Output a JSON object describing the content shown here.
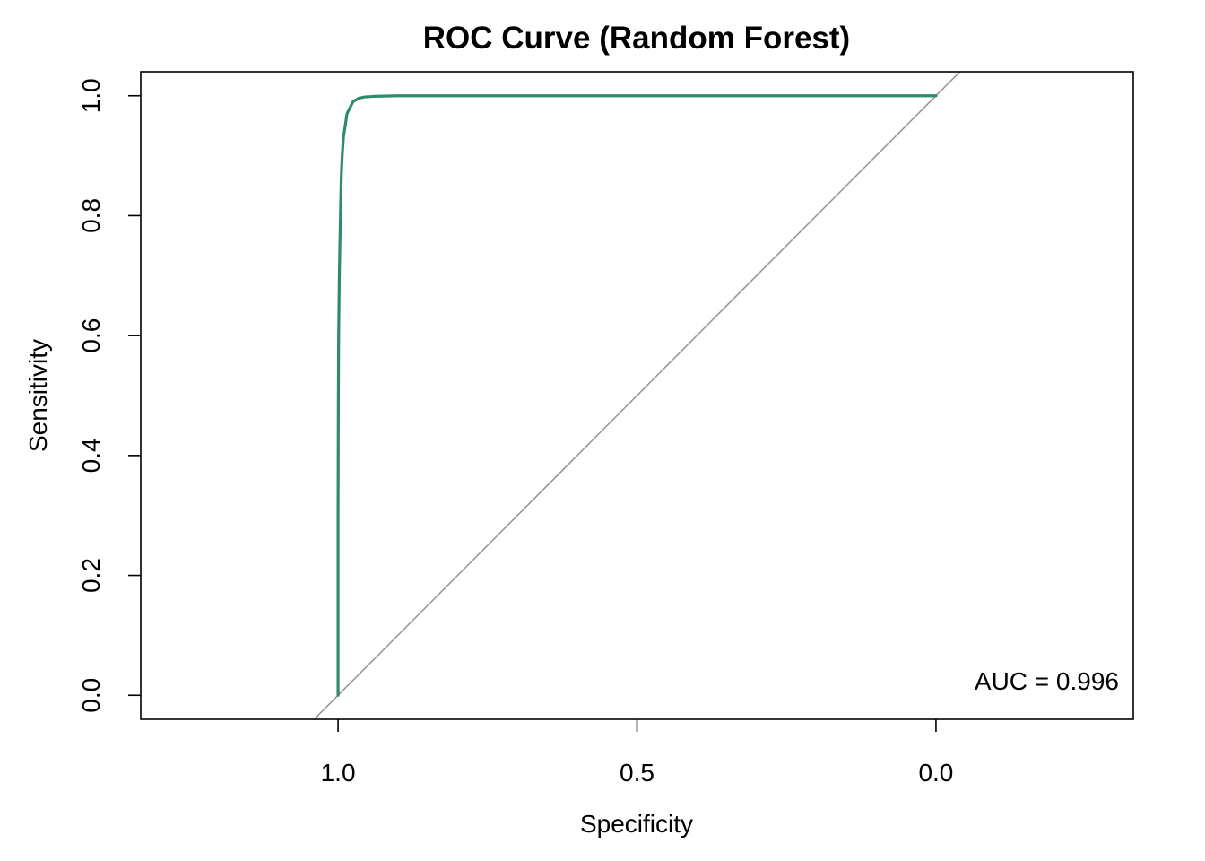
{
  "chart_data": {
    "type": "line",
    "title": "ROC Curve (Random Forest)",
    "xlabel": "Specificity",
    "ylabel": "Sensitivity",
    "x_reversed": true,
    "xlim": [
      1.33,
      -0.33
    ],
    "ylim": [
      -0.04,
      1.04
    ],
    "x_ticks": [
      1.0,
      0.5,
      0.0
    ],
    "x_tick_labels": [
      "1.0",
      "0.5",
      "0.0"
    ],
    "y_ticks": [
      0.0,
      0.2,
      0.4,
      0.6,
      0.8,
      1.0
    ],
    "y_tick_labels": [
      "0.0",
      "0.2",
      "0.4",
      "0.6",
      "0.8",
      "1.0"
    ],
    "grid": false,
    "reference_line": {
      "x": [
        1.0,
        0.0
      ],
      "y": [
        0.0,
        1.0
      ],
      "color": "#999999"
    },
    "series": [
      {
        "color": "#2E8B6E",
        "x": [
          1.0,
          1.0,
          0.9995,
          0.999,
          0.998,
          0.997,
          0.996,
          0.995,
          0.994,
          0.993,
          0.991,
          0.988,
          0.985,
          0.98,
          0.975,
          0.965,
          0.955,
          0.94,
          0.9,
          0.8,
          0.6,
          0.4,
          0.2,
          0.0
        ],
        "y": [
          0.0,
          0.3,
          0.5,
          0.6,
          0.69,
          0.75,
          0.8,
          0.85,
          0.88,
          0.9,
          0.93,
          0.95,
          0.97,
          0.98,
          0.99,
          0.996,
          0.998,
          0.999,
          1.0,
          1.0,
          1.0,
          1.0,
          1.0,
          1.0
        ]
      }
    ],
    "annotations": [
      {
        "text": "AUC = 0.996",
        "position": "bottom-right"
      }
    ]
  }
}
